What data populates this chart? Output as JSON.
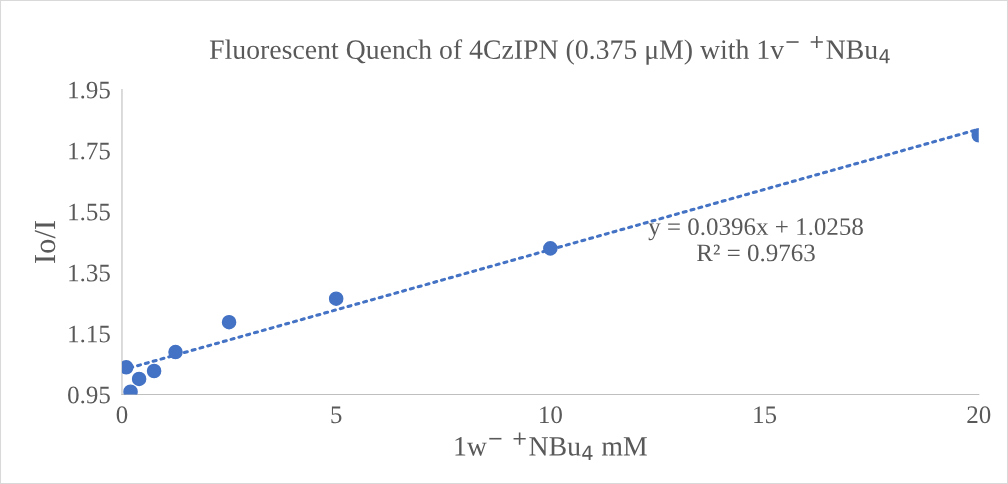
{
  "chart_data": {
    "type": "scatter",
    "title": "Fluorescent Quench of 4CzIPN (0.375 μM) with 1v$^{−}$ $^{+}$NBu$_{4}$",
    "xlabel": "1w$^{−}$ $^{+}$NBu$_{4}$ mM",
    "ylabel": "Io/I",
    "series": [
      {
        "color": "#4472c4",
        "x": [
          0.1,
          0.2,
          0.4,
          0.75,
          1.25,
          2.5,
          5,
          10,
          20
        ],
        "values": [
          1.039,
          0.959,
          1.001,
          1.027,
          1.089,
          1.187,
          1.264,
          1.429,
          1.8
        ],
        "marker": "circle"
      },
      {
        "type": "line",
        "color": "#4472c4",
        "x": [
          0,
          20
        ],
        "values": [
          1.03,
          1.82
        ],
        "line_style": "dotted",
        "marker": "none"
      }
    ],
    "annotations": [
      "y = 0.0396x + 1.0258\nR² = 0.9763"
    ],
    "xlim": [
      0,
      20
    ],
    "xticks": [
      0,
      5,
      10,
      15,
      20
    ],
    "ylim": [
      0.95,
      1.95
    ],
    "yticks": [
      0.95,
      1.15,
      1.35,
      1.55,
      1.75,
      1.95
    ],
    "grid": false,
    "legend": false
  }
}
